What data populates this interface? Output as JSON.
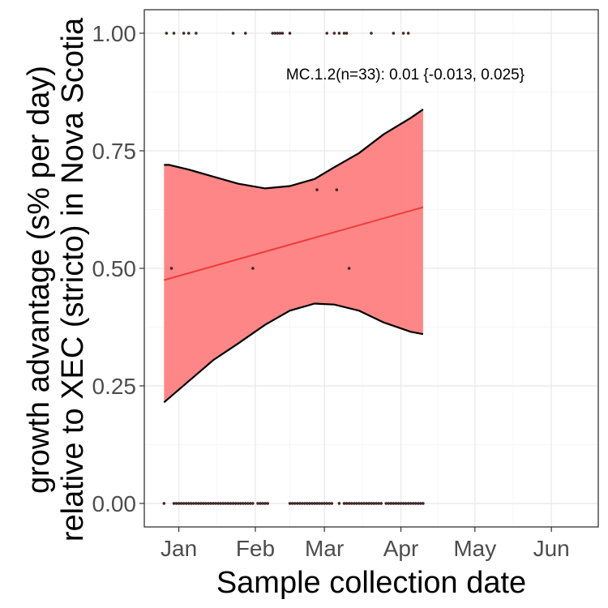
{
  "chart_data": {
    "type": "scatter",
    "xlabel": "Sample collection date",
    "ylabel_lines": [
      "growth advantage (s% per day)",
      "relative to XEC (stricto) in Nova Scotia"
    ],
    "annotation": "MC.1.2(n=33): 0.01 {-0.013, 0.025}",
    "x_ticks": [
      {
        "label": "Jan",
        "date": "2025-01-01"
      },
      {
        "label": "Feb",
        "date": "2025-02-01"
      },
      {
        "label": "Mar",
        "date": "2025-03-01"
      },
      {
        "label": "Apr",
        "date": "2025-04-01"
      },
      {
        "label": "May",
        "date": "2025-05-01"
      },
      {
        "label": "Jun",
        "date": "2025-06-01"
      }
    ],
    "y_ticks": [
      0.0,
      0.25,
      0.5,
      0.75,
      1.0
    ],
    "y_tick_labels": [
      "0.00",
      "0.25",
      "0.50",
      "0.75",
      "1.00"
    ],
    "xlim": [
      "2024-12-18",
      "2025-06-20"
    ],
    "ylim": [
      -0.05,
      1.05
    ],
    "grid": true,
    "fit_line": {
      "color": "#ee3b3b",
      "points": [
        {
          "x": "2024-12-26",
          "y": 0.475
        },
        {
          "x": "2025-04-10",
          "y": 0.63
        }
      ]
    },
    "confidence_band": {
      "fill": "#ff7f7f",
      "upper": [
        {
          "x": "2024-12-26",
          "y": 0.72
        },
        {
          "x": "2024-12-28",
          "y": 0.72
        },
        {
          "x": "2025-01-05",
          "y": 0.71
        },
        {
          "x": "2025-01-15",
          "y": 0.695
        },
        {
          "x": "2025-01-25",
          "y": 0.68
        },
        {
          "x": "2025-02-05",
          "y": 0.67
        },
        {
          "x": "2025-02-15",
          "y": 0.675
        },
        {
          "x": "2025-02-25",
          "y": 0.69
        },
        {
          "x": "2025-03-05",
          "y": 0.715
        },
        {
          "x": "2025-03-15",
          "y": 0.745
        },
        {
          "x": "2025-03-25",
          "y": 0.785
        },
        {
          "x": "2025-04-05",
          "y": 0.82
        },
        {
          "x": "2025-04-10",
          "y": 0.838
        }
      ],
      "lower": [
        {
          "x": "2024-12-26",
          "y": 0.215
        },
        {
          "x": "2025-01-05",
          "y": 0.26
        },
        {
          "x": "2025-01-15",
          "y": 0.305
        },
        {
          "x": "2025-01-25",
          "y": 0.34
        },
        {
          "x": "2025-02-05",
          "y": 0.38
        },
        {
          "x": "2025-02-15",
          "y": 0.41
        },
        {
          "x": "2025-02-25",
          "y": 0.425
        },
        {
          "x": "2025-03-05",
          "y": 0.423
        },
        {
          "x": "2025-03-15",
          "y": 0.41
        },
        {
          "x": "2025-03-25",
          "y": 0.385
        },
        {
          "x": "2025-04-05",
          "y": 0.365
        },
        {
          "x": "2025-04-10",
          "y": 0.36
        }
      ]
    },
    "points": [
      {
        "x": "2024-12-27",
        "y": 1.0
      },
      {
        "x": "2024-12-30",
        "y": 1.0
      },
      {
        "x": "2025-01-03",
        "y": 1.0
      },
      {
        "x": "2025-01-05",
        "y": 1.0
      },
      {
        "x": "2025-01-08",
        "y": 1.0
      },
      {
        "x": "2025-01-23",
        "y": 1.0
      },
      {
        "x": "2025-01-28",
        "y": 1.0
      },
      {
        "x": "2025-02-08",
        "y": 1.0
      },
      {
        "x": "2025-02-09",
        "y": 1.0
      },
      {
        "x": "2025-02-10",
        "y": 1.0
      },
      {
        "x": "2025-02-11",
        "y": 1.0
      },
      {
        "x": "2025-02-12",
        "y": 1.0
      },
      {
        "x": "2025-02-15",
        "y": 1.0
      },
      {
        "x": "2025-03-02",
        "y": 1.0
      },
      {
        "x": "2025-03-05",
        "y": 1.0
      },
      {
        "x": "2025-03-07",
        "y": 1.0
      },
      {
        "x": "2025-03-09",
        "y": 1.0
      },
      {
        "x": "2025-03-10",
        "y": 1.0
      },
      {
        "x": "2025-03-20",
        "y": 1.0
      },
      {
        "x": "2025-03-29",
        "y": 1.0
      },
      {
        "x": "2025-04-02",
        "y": 1.0
      },
      {
        "x": "2025-04-04",
        "y": 1.0
      },
      {
        "x": "2025-02-26",
        "y": 0.667
      },
      {
        "x": "2025-03-06",
        "y": 0.667
      },
      {
        "x": "2024-12-29",
        "y": 0.5
      },
      {
        "x": "2025-01-31",
        "y": 0.5
      },
      {
        "x": "2025-03-11",
        "y": 0.5
      }
    ],
    "zero_point_ranges": [
      {
        "from": "2024-12-26",
        "to": "2024-12-26",
        "step": 1
      },
      {
        "from": "2024-12-30",
        "to": "2025-01-31",
        "step": 1
      },
      {
        "from": "2025-02-02",
        "to": "2025-02-06",
        "step": 1
      },
      {
        "from": "2025-02-15",
        "to": "2025-03-04",
        "step": 1
      },
      {
        "from": "2025-03-07",
        "to": "2025-03-07",
        "step": 1
      },
      {
        "from": "2025-03-09",
        "to": "2025-03-24",
        "step": 1
      },
      {
        "from": "2025-03-26",
        "to": "2025-04-10",
        "step": 1
      }
    ]
  }
}
